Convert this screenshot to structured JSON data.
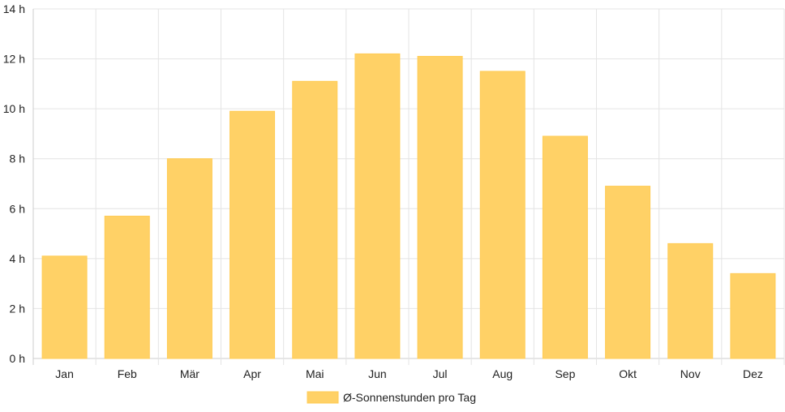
{
  "chart_data": {
    "type": "bar",
    "categories": [
      "Jan",
      "Feb",
      "Mär",
      "Apr",
      "Mai",
      "Jun",
      "Jul",
      "Aug",
      "Sep",
      "Okt",
      "Nov",
      "Dez"
    ],
    "series": [
      {
        "name": "Ø-Sonnenstunden pro Tag",
        "values": [
          4.1,
          5.7,
          8.0,
          9.9,
          11.1,
          12.2,
          12.1,
          11.5,
          8.9,
          6.9,
          4.6,
          3.4
        ]
      }
    ],
    "y_ticks": [
      "0 h",
      "2 h",
      "4 h",
      "6 h",
      "8 h",
      "10 h",
      "12 h",
      "14 h"
    ],
    "ylim": [
      0,
      14
    ],
    "y_step": 2,
    "grid": true,
    "legend": "bottom-center",
    "colors": {
      "bar_fill": "#ffd166",
      "bar_stroke": "#ffcc55",
      "grid": "#e4e4e4",
      "axis": "#cccccc"
    }
  }
}
